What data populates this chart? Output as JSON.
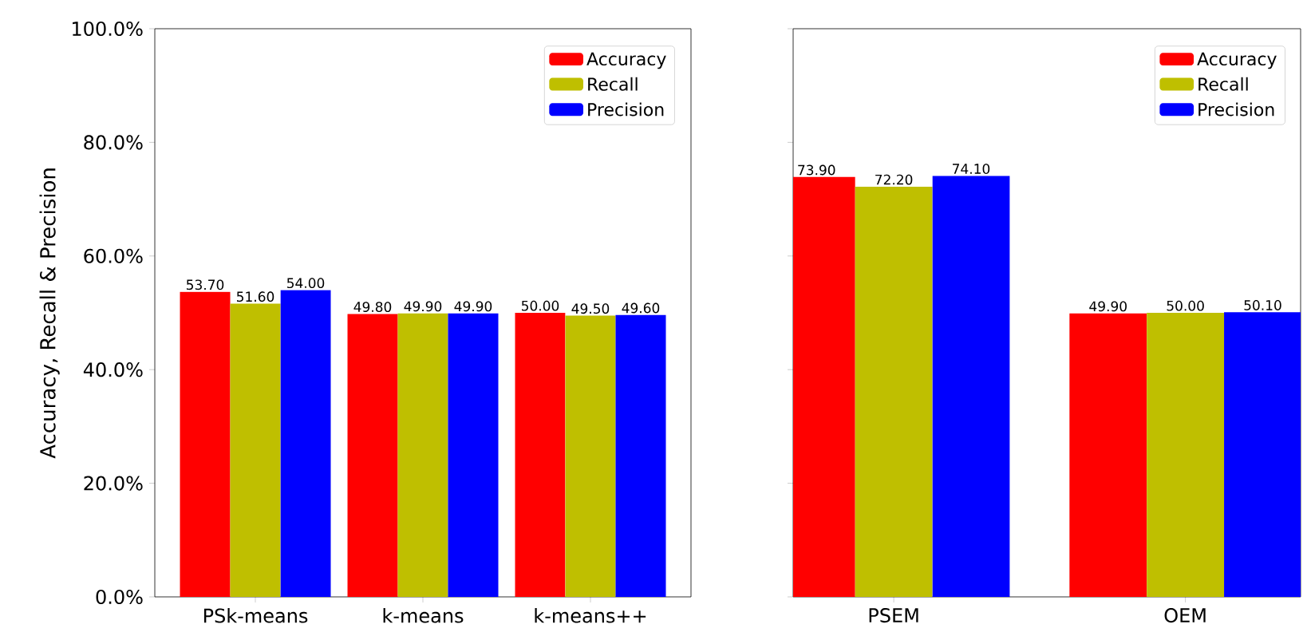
{
  "chart_data": [
    {
      "type": "bar",
      "ylabel": "Accuracy, Recall & Precision",
      "categories": [
        "PSk-means",
        "k-means",
        "k-means++"
      ],
      "series": [
        {
          "name": "Accuracy",
          "color": "#ff0000",
          "values": [
            53.7,
            49.8,
            50.0
          ],
          "value_labels": [
            "53.70",
            "49.80",
            "50.00"
          ]
        },
        {
          "name": "Recall",
          "color": "#bfbf00",
          "values": [
            51.6,
            49.9,
            49.5
          ],
          "value_labels": [
            "51.60",
            "49.90",
            "49.50"
          ]
        },
        {
          "name": "Precision",
          "color": "#0000ff",
          "values": [
            54.0,
            49.9,
            49.6
          ],
          "value_labels": [
            "54.00",
            "49.90",
            "49.60"
          ]
        }
      ],
      "ylim": [
        0,
        100
      ],
      "yticks": [
        {
          "value": 0,
          "label": "0.0%"
        },
        {
          "value": 20,
          "label": "20.0%"
        },
        {
          "value": 40,
          "label": "40.0%"
        },
        {
          "value": 60,
          "label": "60.0%"
        },
        {
          "value": 80,
          "label": "80.0%"
        },
        {
          "value": 100,
          "label": "100.0%"
        }
      ],
      "legend": "top right"
    },
    {
      "type": "bar",
      "categories": [
        "PSEM",
        "OEM"
      ],
      "series": [
        {
          "name": "Accuracy",
          "color": "#ff0000",
          "values": [
            73.9,
            49.9
          ],
          "value_labels": [
            "73.90",
            "49.90"
          ]
        },
        {
          "name": "Recall",
          "color": "#bfbf00",
          "values": [
            72.2,
            50.0
          ],
          "value_labels": [
            "72.20",
            "50.00"
          ]
        },
        {
          "name": "Precision",
          "color": "#0000ff",
          "values": [
            74.1,
            50.1
          ],
          "value_labels": [
            "74.10",
            "50.10"
          ]
        }
      ],
      "ylim": [
        0,
        100
      ],
      "yticks": [
        {
          "value": 0,
          "label": null
        },
        {
          "value": 20,
          "label": null
        },
        {
          "value": 40,
          "label": null
        },
        {
          "value": 60,
          "label": null
        },
        {
          "value": 80,
          "label": null
        },
        {
          "value": 100,
          "label": null
        }
      ],
      "tick_labels": "x",
      "legend": "top right"
    }
  ]
}
